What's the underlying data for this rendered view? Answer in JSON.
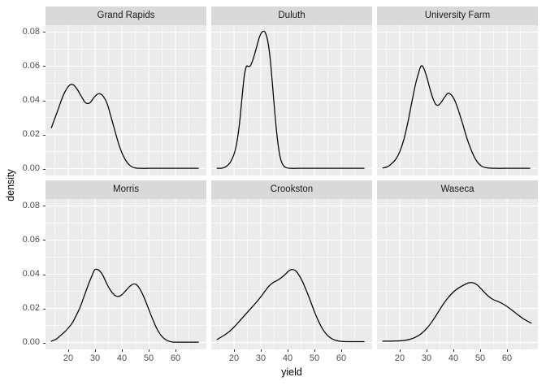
{
  "figure": {
    "xlabel": "yield",
    "ylabel": "density"
  },
  "chart_data": {
    "type": "line",
    "subtype": "faceted-density-curves",
    "facet_layout": {
      "rows": 2,
      "cols": 3
    },
    "xlabel": "yield",
    "ylabel": "density",
    "grid": true,
    "legend": "none",
    "x_domain": [
      11.5,
      71.5
    ],
    "y_domain": [
      -0.004,
      0.084
    ],
    "x_major_ticks": [
      20,
      30,
      40,
      50,
      60
    ],
    "x_minor_ticks": [
      15,
      25,
      35,
      45,
      55,
      65
    ],
    "y_major_ticks": [
      0.0,
      0.02,
      0.04,
      0.06,
      0.08
    ],
    "y_minor_ticks": [
      0.01,
      0.03,
      0.05,
      0.07
    ],
    "x_tick_labels": [
      "20",
      "30",
      "40",
      "50",
      "60"
    ],
    "y_tick_labels": [
      "0.00",
      "0.02",
      "0.04",
      "0.06",
      "0.08"
    ],
    "colors": {
      "figure_background": "#FFFFFF",
      "panel_background": "#EBEBEB",
      "strip_background": "#D9D9D9",
      "gridline": "#FFFFFF",
      "curve": "#000000",
      "tick_text": "#4D4D4D",
      "axis_title_text": "#000000",
      "strip_text": "#1A1A1A",
      "tick_mark": "#333333"
    },
    "facets": [
      {
        "name": "Grand Rapids",
        "row": 0,
        "col": 0,
        "points": [
          [
            13.7,
            0.024
          ],
          [
            15,
            0.0295
          ],
          [
            16.5,
            0.036
          ],
          [
            18,
            0.0425
          ],
          [
            19.5,
            0.047
          ],
          [
            20.8,
            0.0492
          ],
          [
            22,
            0.049
          ],
          [
            23.5,
            0.046
          ],
          [
            25,
            0.042
          ],
          [
            26.5,
            0.0385
          ],
          [
            28,
            0.0385
          ],
          [
            29.5,
            0.0415
          ],
          [
            30.8,
            0.0435
          ],
          [
            32,
            0.0437
          ],
          [
            33.2,
            0.042
          ],
          [
            34.5,
            0.038
          ],
          [
            36,
            0.03
          ],
          [
            37.5,
            0.0215
          ],
          [
            39,
            0.0135
          ],
          [
            40.5,
            0.0075
          ],
          [
            42,
            0.0035
          ],
          [
            43.5,
            0.0013
          ],
          [
            45,
            0.0004
          ],
          [
            47,
            0.0002
          ],
          [
            50,
            0.0002
          ],
          [
            55,
            0.0002
          ],
          [
            60,
            0.0002
          ],
          [
            64,
            0.0002
          ],
          [
            68.5,
            0.0002
          ]
        ]
      },
      {
        "name": "Duluth",
        "row": 0,
        "col": 1,
        "points": [
          [
            13.7,
            0.0002
          ],
          [
            15.5,
            0.0003
          ],
          [
            17,
            0.0012
          ],
          [
            18.5,
            0.0035
          ],
          [
            20,
            0.0085
          ],
          [
            21,
            0.015
          ],
          [
            22,
            0.026
          ],
          [
            23,
            0.042
          ],
          [
            23.8,
            0.054
          ],
          [
            24.6,
            0.0598
          ],
          [
            25.4,
            0.0598
          ],
          [
            26.2,
            0.0605
          ],
          [
            27.2,
            0.0645
          ],
          [
            28.3,
            0.0705
          ],
          [
            29.3,
            0.0762
          ],
          [
            30.2,
            0.0795
          ],
          [
            31,
            0.0805
          ],
          [
            31.7,
            0.0795
          ],
          [
            32.6,
            0.0745
          ],
          [
            33.5,
            0.064
          ],
          [
            34.4,
            0.048
          ],
          [
            35.3,
            0.031
          ],
          [
            36.2,
            0.017
          ],
          [
            37.1,
            0.0075
          ],
          [
            38.1,
            0.0026
          ],
          [
            39.3,
            0.0007
          ],
          [
            41,
            0.0002
          ],
          [
            44,
            0.0002
          ],
          [
            50,
            0.0002
          ],
          [
            58,
            0.0002
          ],
          [
            63,
            0.0002
          ],
          [
            68.5,
            0.0002
          ]
        ]
      },
      {
        "name": "University Farm",
        "row": 0,
        "col": 2,
        "points": [
          [
            13.7,
            0.0004
          ],
          [
            15.5,
            0.0012
          ],
          [
            17,
            0.003
          ],
          [
            18.5,
            0.0055
          ],
          [
            20,
            0.01
          ],
          [
            21.5,
            0.017
          ],
          [
            23,
            0.027
          ],
          [
            24.5,
            0.039
          ],
          [
            25.8,
            0.049
          ],
          [
            27,
            0.056
          ],
          [
            27.9,
            0.06
          ],
          [
            28.8,
            0.0593
          ],
          [
            30,
            0.054
          ],
          [
            31.2,
            0.047
          ],
          [
            32.4,
            0.041
          ],
          [
            33.4,
            0.0377
          ],
          [
            34.4,
            0.0372
          ],
          [
            35.5,
            0.039
          ],
          [
            36.8,
            0.042
          ],
          [
            38,
            0.0442
          ],
          [
            39.2,
            0.0432
          ],
          [
            40.5,
            0.04
          ],
          [
            42,
            0.0335
          ],
          [
            43.5,
            0.026
          ],
          [
            45,
            0.018
          ],
          [
            46.5,
            0.0115
          ],
          [
            48,
            0.0062
          ],
          [
            49.5,
            0.0028
          ],
          [
            51,
            0.0011
          ],
          [
            53,
            0.0004
          ],
          [
            56,
            0.0002
          ],
          [
            60,
            0.0002
          ],
          [
            64,
            0.0002
          ],
          [
            68.5,
            0.0002
          ]
        ]
      },
      {
        "name": "Morris",
        "row": 1,
        "col": 0,
        "points": [
          [
            13.7,
            0.0008
          ],
          [
            15.5,
            0.002
          ],
          [
            17,
            0.004
          ],
          [
            18.5,
            0.006
          ],
          [
            20,
            0.0085
          ],
          [
            21.5,
            0.0115
          ],
          [
            23,
            0.016
          ],
          [
            24.5,
            0.021
          ],
          [
            26,
            0.0275
          ],
          [
            27.5,
            0.034
          ],
          [
            28.8,
            0.039
          ],
          [
            29.8,
            0.0425
          ],
          [
            30.8,
            0.0428
          ],
          [
            31.8,
            0.0418
          ],
          [
            33,
            0.039
          ],
          [
            34.5,
            0.034
          ],
          [
            36,
            0.03
          ],
          [
            37.5,
            0.0275
          ],
          [
            38.7,
            0.027
          ],
          [
            40,
            0.028
          ],
          [
            41.5,
            0.0305
          ],
          [
            43,
            0.033
          ],
          [
            44.3,
            0.0342
          ],
          [
            45.5,
            0.0338
          ],
          [
            47,
            0.0305
          ],
          [
            48.5,
            0.0255
          ],
          [
            50,
            0.0195
          ],
          [
            51.5,
            0.0135
          ],
          [
            53,
            0.0082
          ],
          [
            54.5,
            0.0044
          ],
          [
            56,
            0.002
          ],
          [
            57.5,
            0.0008
          ],
          [
            59,
            0.0003
          ],
          [
            61,
            0.0002
          ],
          [
            64,
            0.0002
          ],
          [
            68.5,
            0.0002
          ]
        ]
      },
      {
        "name": "Crookston",
        "row": 1,
        "col": 1,
        "points": [
          [
            13.7,
            0.0018
          ],
          [
            15.5,
            0.0035
          ],
          [
            17,
            0.005
          ],
          [
            18.5,
            0.0068
          ],
          [
            20,
            0.009
          ],
          [
            22,
            0.0125
          ],
          [
            24,
            0.016
          ],
          [
            26,
            0.0195
          ],
          [
            28,
            0.023
          ],
          [
            30,
            0.0268
          ],
          [
            31.5,
            0.03
          ],
          [
            33,
            0.033
          ],
          [
            34.5,
            0.035
          ],
          [
            36,
            0.0363
          ],
          [
            37.5,
            0.0378
          ],
          [
            39,
            0.0398
          ],
          [
            40.5,
            0.042
          ],
          [
            41.7,
            0.0428
          ],
          [
            42.8,
            0.0422
          ],
          [
            44,
            0.04
          ],
          [
            45.5,
            0.0358
          ],
          [
            47,
            0.0303
          ],
          [
            48.5,
            0.0243
          ],
          [
            50,
            0.018
          ],
          [
            51.5,
            0.0125
          ],
          [
            53,
            0.008
          ],
          [
            54.5,
            0.0048
          ],
          [
            56,
            0.0027
          ],
          [
            57.5,
            0.0015
          ],
          [
            59,
            0.0009
          ],
          [
            61,
            0.0006
          ],
          [
            63.5,
            0.0005
          ],
          [
            66,
            0.0005
          ],
          [
            68.5,
            0.0005
          ]
        ]
      },
      {
        "name": "Waseca",
        "row": 1,
        "col": 2,
        "points": [
          [
            13.7,
            0.0008
          ],
          [
            16,
            0.0008
          ],
          [
            18,
            0.0009
          ],
          [
            20,
            0.001
          ],
          [
            22,
            0.0013
          ],
          [
            24,
            0.002
          ],
          [
            26,
            0.0032
          ],
          [
            28,
            0.0052
          ],
          [
            30,
            0.0082
          ],
          [
            32,
            0.0122
          ],
          [
            34,
            0.017
          ],
          [
            36,
            0.022
          ],
          [
            38,
            0.0262
          ],
          [
            40,
            0.0296
          ],
          [
            42,
            0.032
          ],
          [
            44,
            0.0338
          ],
          [
            45.8,
            0.035
          ],
          [
            47.3,
            0.035
          ],
          [
            48.8,
            0.0338
          ],
          [
            50.3,
            0.0315
          ],
          [
            51.8,
            0.029
          ],
          [
            53.3,
            0.0268
          ],
          [
            54.8,
            0.0252
          ],
          [
            56.3,
            0.0242
          ],
          [
            58,
            0.023
          ],
          [
            60,
            0.0211
          ],
          [
            62,
            0.0188
          ],
          [
            64,
            0.0163
          ],
          [
            66,
            0.014
          ],
          [
            68,
            0.0122
          ],
          [
            69,
            0.0114
          ]
        ]
      }
    ]
  }
}
